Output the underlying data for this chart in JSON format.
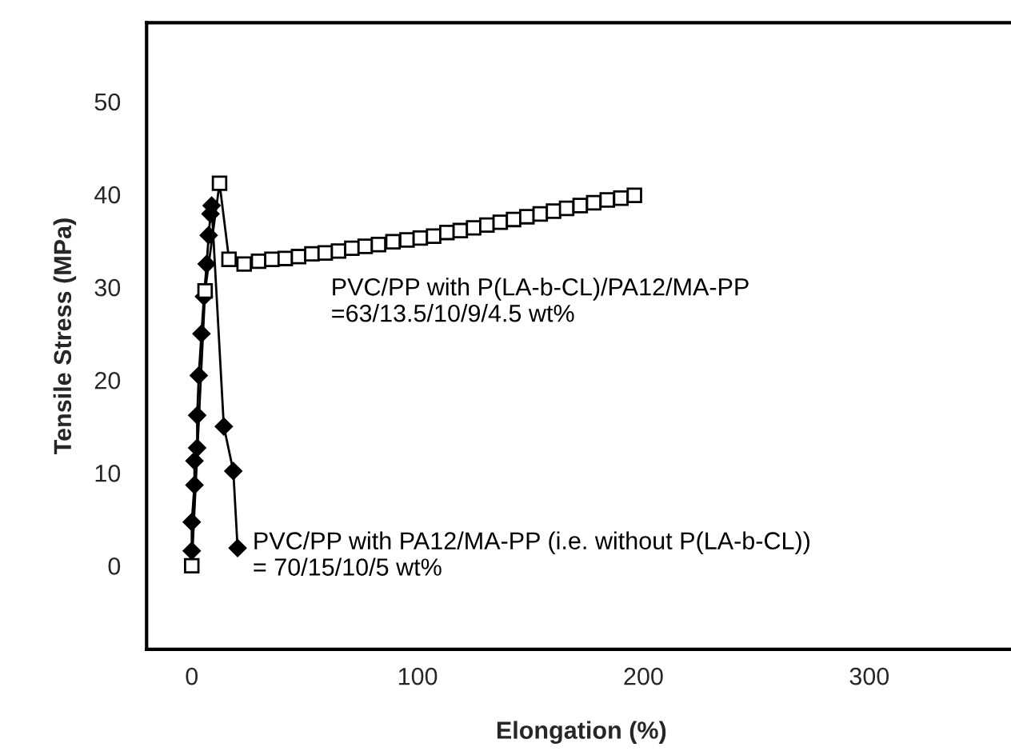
{
  "chart_data": {
    "type": "line",
    "xlabel": "Elongation (%)",
    "ylabel": "Tensile Stress (MPa)",
    "xlim": [
      -20,
      365
    ],
    "ylim": [
      -9,
      58.5
    ],
    "xticks": [
      0,
      100,
      200,
      300
    ],
    "yticks": [
      0,
      10,
      20,
      30,
      40,
      50
    ],
    "grid": false,
    "legend": false,
    "line_style": "solid",
    "series": [
      {
        "name": "PVC/PP with P(LA-b-CL)/PA12/MA-PP\n=63/13.5/10/9/4.5 wt%",
        "color": "#000000",
        "marker": "square",
        "x": [
          0,
          5.9,
          12.3,
          16.5,
          23.2,
          29.6,
          35.5,
          41.4,
          47.3,
          53.2,
          59.1,
          65,
          70.9,
          76.8,
          82.7,
          89.1,
          95.3,
          101.2,
          107.1,
          113,
          118.9,
          124.8,
          130.7,
          136.6,
          142.5,
          148.4,
          154.3,
          160.2,
          166,
          172,
          178,
          184,
          190,
          196
        ],
        "values": [
          0,
          29.6,
          41.2,
          33.0,
          32.5,
          32.8,
          33.0,
          33.1,
          33.3,
          33.6,
          33.7,
          33.9,
          34.2,
          34.4,
          34.6,
          34.9,
          35.1,
          35.3,
          35.5,
          35.9,
          36.1,
          36.4,
          36.7,
          37.0,
          37.3,
          37.6,
          37.9,
          38.2,
          38.5,
          38.8,
          39.1,
          39.4,
          39.6,
          39.9
        ]
      },
      {
        "name": "PVC/PP with PA12/MA-PP (i.e. without P(LA-b-CL))\n= 70/15/10/5 wt%",
        "color": "#000000",
        "marker": "diamond",
        "x": [
          0,
          0,
          1.2,
          1.2,
          2.4,
          2.4,
          3.1,
          4.3,
          5.4,
          6.6,
          7.5,
          8.3,
          8.8,
          14.2,
          18.4,
          20.3
        ],
        "values": [
          1.6,
          4.7,
          8.7,
          11.3,
          12.7,
          16.2,
          20.5,
          25.0,
          29.0,
          32.5,
          35.6,
          37.9,
          38.8,
          15.0,
          10.2,
          1.9
        ]
      }
    ]
  }
}
